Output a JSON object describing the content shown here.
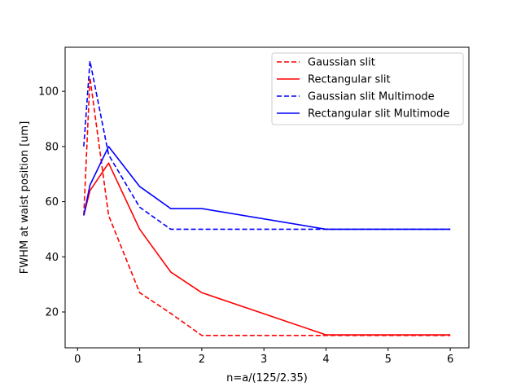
{
  "chart_data": {
    "type": "line",
    "title": "",
    "xlabel": "n=a/(125/2.35)",
    "ylabel": "FWHM at waist position [um]",
    "xlim": [
      -0.2,
      6.3
    ],
    "ylim": [
      7,
      116
    ],
    "xticks": [
      0,
      1,
      2,
      3,
      4,
      5,
      6
    ],
    "yticks": [
      20,
      40,
      60,
      80,
      100
    ],
    "grid": false,
    "legend_position": "top-right",
    "series": [
      {
        "name": "Gaussian slit",
        "color": "#ff0000",
        "style": "dashed",
        "x": [
          0.1,
          0.2,
          0.5,
          1,
          1.5,
          2,
          4,
          6
        ],
        "y": [
          55,
          105,
          55,
          27,
          19.5,
          11.5,
          11.5,
          11.5
        ]
      },
      {
        "name": "Rectangular slit",
        "color": "#ff0000",
        "style": "solid",
        "x": [
          0.1,
          0.2,
          0.5,
          1,
          1.5,
          2,
          4,
          6
        ],
        "y": [
          55,
          64,
          74,
          50,
          34.5,
          27,
          11.7,
          11.7
        ]
      },
      {
        "name": "Gaussian slit Multimode",
        "color": "#0000ff",
        "style": "dashed",
        "x": [
          0.1,
          0.2,
          0.5,
          1,
          1.5,
          2,
          4,
          6
        ],
        "y": [
          80,
          111,
          77,
          58,
          50,
          50,
          50,
          50
        ]
      },
      {
        "name": "Rectangular slit Multimode",
        "color": "#0000ff",
        "style": "solid",
        "x": [
          0.1,
          0.2,
          0.5,
          1,
          1.5,
          2,
          4,
          6
        ],
        "y": [
          55,
          66,
          80,
          65.5,
          57.5,
          57.5,
          50,
          50
        ]
      }
    ]
  }
}
